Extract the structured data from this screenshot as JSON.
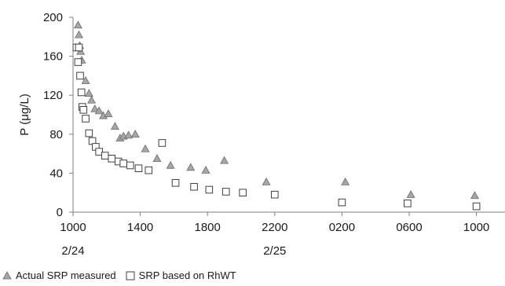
{
  "chart_data": {
    "type": "scatter",
    "ylabel": "P (μg/L)",
    "xlabel": "",
    "ylim": [
      0,
      200
    ],
    "yticks": [
      "0",
      "40",
      "80",
      "120",
      "160",
      "200"
    ],
    "xlim": [
      0,
      27.5
    ],
    "x_unit": "hours after 1000 on 2/24",
    "xtick_labels": [
      "1000",
      "1400",
      "1800",
      "2200",
      "0200",
      "0600",
      "1000"
    ],
    "xtick_hours": [
      0,
      4,
      8,
      12,
      16,
      20,
      24
    ],
    "date_labels": [
      {
        "label": "2/24",
        "hours": 0
      },
      {
        "label": "2/25",
        "hours": 12
      }
    ],
    "grid": false,
    "legend_position": "bottom-left",
    "series": [
      {
        "name": "Actual SRP measured",
        "marker": "triangle",
        "color": "#a6a6a6",
        "x": [
          0.3,
          0.35,
          0.4,
          0.45,
          0.52,
          0.75,
          0.95,
          1.1,
          1.3,
          1.55,
          1.8,
          2.1,
          2.5,
          2.8,
          3.0,
          3.3,
          3.7,
          4.3,
          5.0,
          5.8,
          7.0,
          7.9,
          9.0,
          11.5,
          16.2,
          20.1,
          23.9
        ],
        "y": [
          192,
          182,
          171,
          165,
          156,
          135,
          122,
          115,
          106,
          104,
          99,
          101,
          88,
          76,
          78,
          79,
          80,
          65,
          55,
          48,
          46,
          43,
          53,
          31,
          31,
          18,
          17
        ]
      },
      {
        "name": "SRP based on RhWT",
        "marker": "square",
        "color": "#ffffff",
        "x": [
          0.2,
          0.3,
          0.35,
          0.42,
          0.5,
          0.55,
          0.62,
          0.75,
          0.95,
          1.15,
          1.35,
          1.55,
          1.9,
          2.3,
          2.7,
          3.0,
          3.4,
          3.9,
          4.5,
          5.3,
          6.1,
          7.2,
          8.1,
          9.1,
          10.1,
          12.0,
          16.0,
          19.9,
          24.0
        ],
        "y": [
          169,
          154,
          169,
          140,
          123,
          108,
          105,
          96,
          81,
          73,
          67,
          62,
          58,
          55,
          52,
          50,
          48,
          45,
          43,
          71,
          30,
          26,
          23,
          21,
          20,
          18,
          10,
          9,
          6
        ]
      }
    ]
  }
}
